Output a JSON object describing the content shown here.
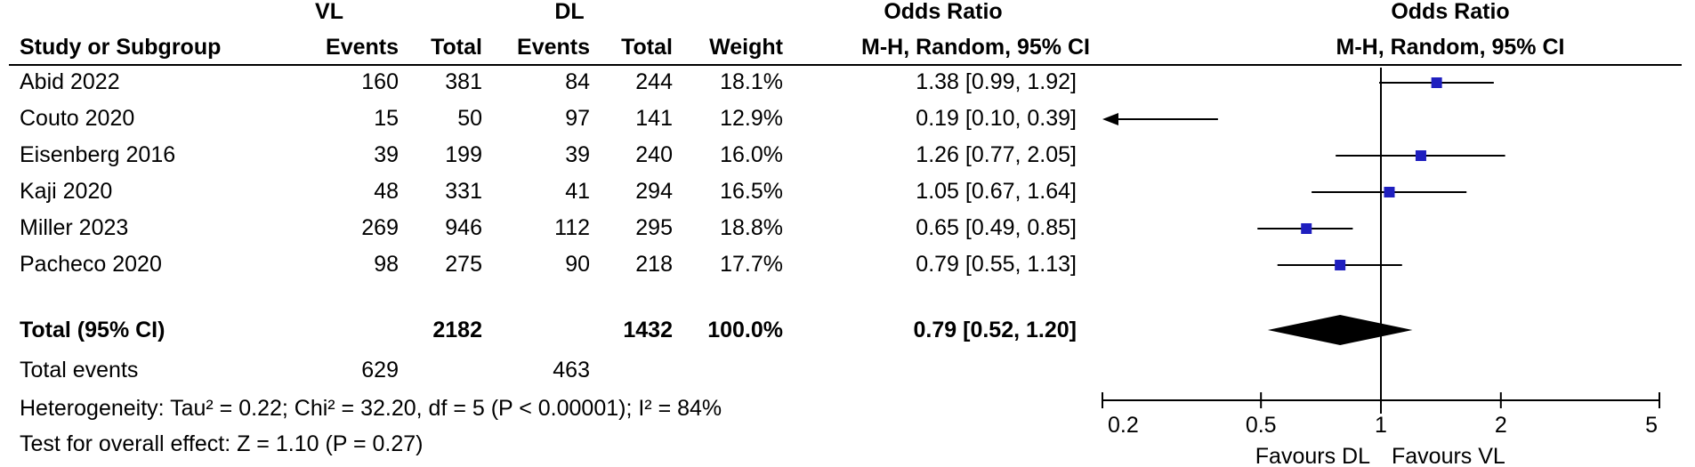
{
  "header": {
    "group_vl": "VL",
    "group_dl": "DL",
    "odds_ratio_title": "Odds Ratio",
    "study_col": "Study or Subgroup",
    "events": "Events",
    "total": "Total",
    "weight": "Weight",
    "method": "M-H, Random, 95% CI",
    "plot_title": "Odds Ratio",
    "plot_method": "M-H, Random, 95% CI"
  },
  "rows": [
    {
      "study": "Abid 2022",
      "vl_events": "160",
      "vl_total": "381",
      "dl_events": "84",
      "dl_total": "244",
      "weight": "18.1%",
      "or_text": "1.38 [0.99, 1.92]"
    },
    {
      "study": "Couto 2020",
      "vl_events": "15",
      "vl_total": "50",
      "dl_events": "97",
      "dl_total": "141",
      "weight": "12.9%",
      "or_text": "0.19 [0.10, 0.39]"
    },
    {
      "study": "Eisenberg 2016",
      "vl_events": "39",
      "vl_total": "199",
      "dl_events": "39",
      "dl_total": "240",
      "weight": "16.0%",
      "or_text": "1.26 [0.77, 2.05]"
    },
    {
      "study": "Kaji 2020",
      "vl_events": "48",
      "vl_total": "331",
      "dl_events": "41",
      "dl_total": "294",
      "weight": "16.5%",
      "or_text": "1.05 [0.67, 1.64]"
    },
    {
      "study": "Miller 2023",
      "vl_events": "269",
      "vl_total": "946",
      "dl_events": "112",
      "dl_total": "295",
      "weight": "18.8%",
      "or_text": "0.65 [0.49, 0.85]"
    },
    {
      "study": "Pacheco 2020",
      "vl_events": "98",
      "vl_total": "275",
      "dl_events": "90",
      "dl_total": "218",
      "weight": "17.7%",
      "or_text": "0.79 [0.55, 1.13]"
    }
  ],
  "total_row": {
    "label": "Total (95% CI)",
    "vl_total": "2182",
    "dl_total": "1432",
    "weight": "100.0%",
    "or_text": "0.79 [0.52, 1.20]"
  },
  "total_events": {
    "label": "Total events",
    "vl": "629",
    "dl": "463"
  },
  "heterogeneity": "Heterogeneity: Tau² = 0.22; Chi² = 32.20, df = 5 (P < 0.00001); I² = 84%",
  "overall_effect": "Test for overall effect: Z = 1.10 (P = 0.27)",
  "axis": {
    "favours_left": "Favours DL",
    "favours_right": "Favours VL"
  },
  "colors": {
    "marker": "#1f1fbf",
    "line": "#000000"
  },
  "chart_data": {
    "type": "forest",
    "scale": "log",
    "xlim": [
      0.2,
      5
    ],
    "x_ticks": [
      0.2,
      0.5,
      1,
      2,
      5
    ],
    "x_tick_labels": [
      "0.2",
      "0.5",
      "1",
      "2",
      "5"
    ],
    "null_line": 1,
    "studies": [
      {
        "name": "Abid 2022",
        "or": 1.38,
        "lo": 0.99,
        "hi": 1.92
      },
      {
        "name": "Couto 2020",
        "or": 0.19,
        "lo": 0.1,
        "hi": 0.39
      },
      {
        "name": "Eisenberg 2016",
        "or": 1.26,
        "lo": 0.77,
        "hi": 2.05
      },
      {
        "name": "Kaji 2020",
        "or": 1.05,
        "lo": 0.67,
        "hi": 1.64
      },
      {
        "name": "Miller 2023",
        "or": 0.65,
        "lo": 0.49,
        "hi": 0.85
      },
      {
        "name": "Pacheco 2020",
        "or": 0.79,
        "lo": 0.55,
        "hi": 1.13
      }
    ],
    "pooled": {
      "or": 0.79,
      "lo": 0.52,
      "hi": 1.2
    }
  }
}
